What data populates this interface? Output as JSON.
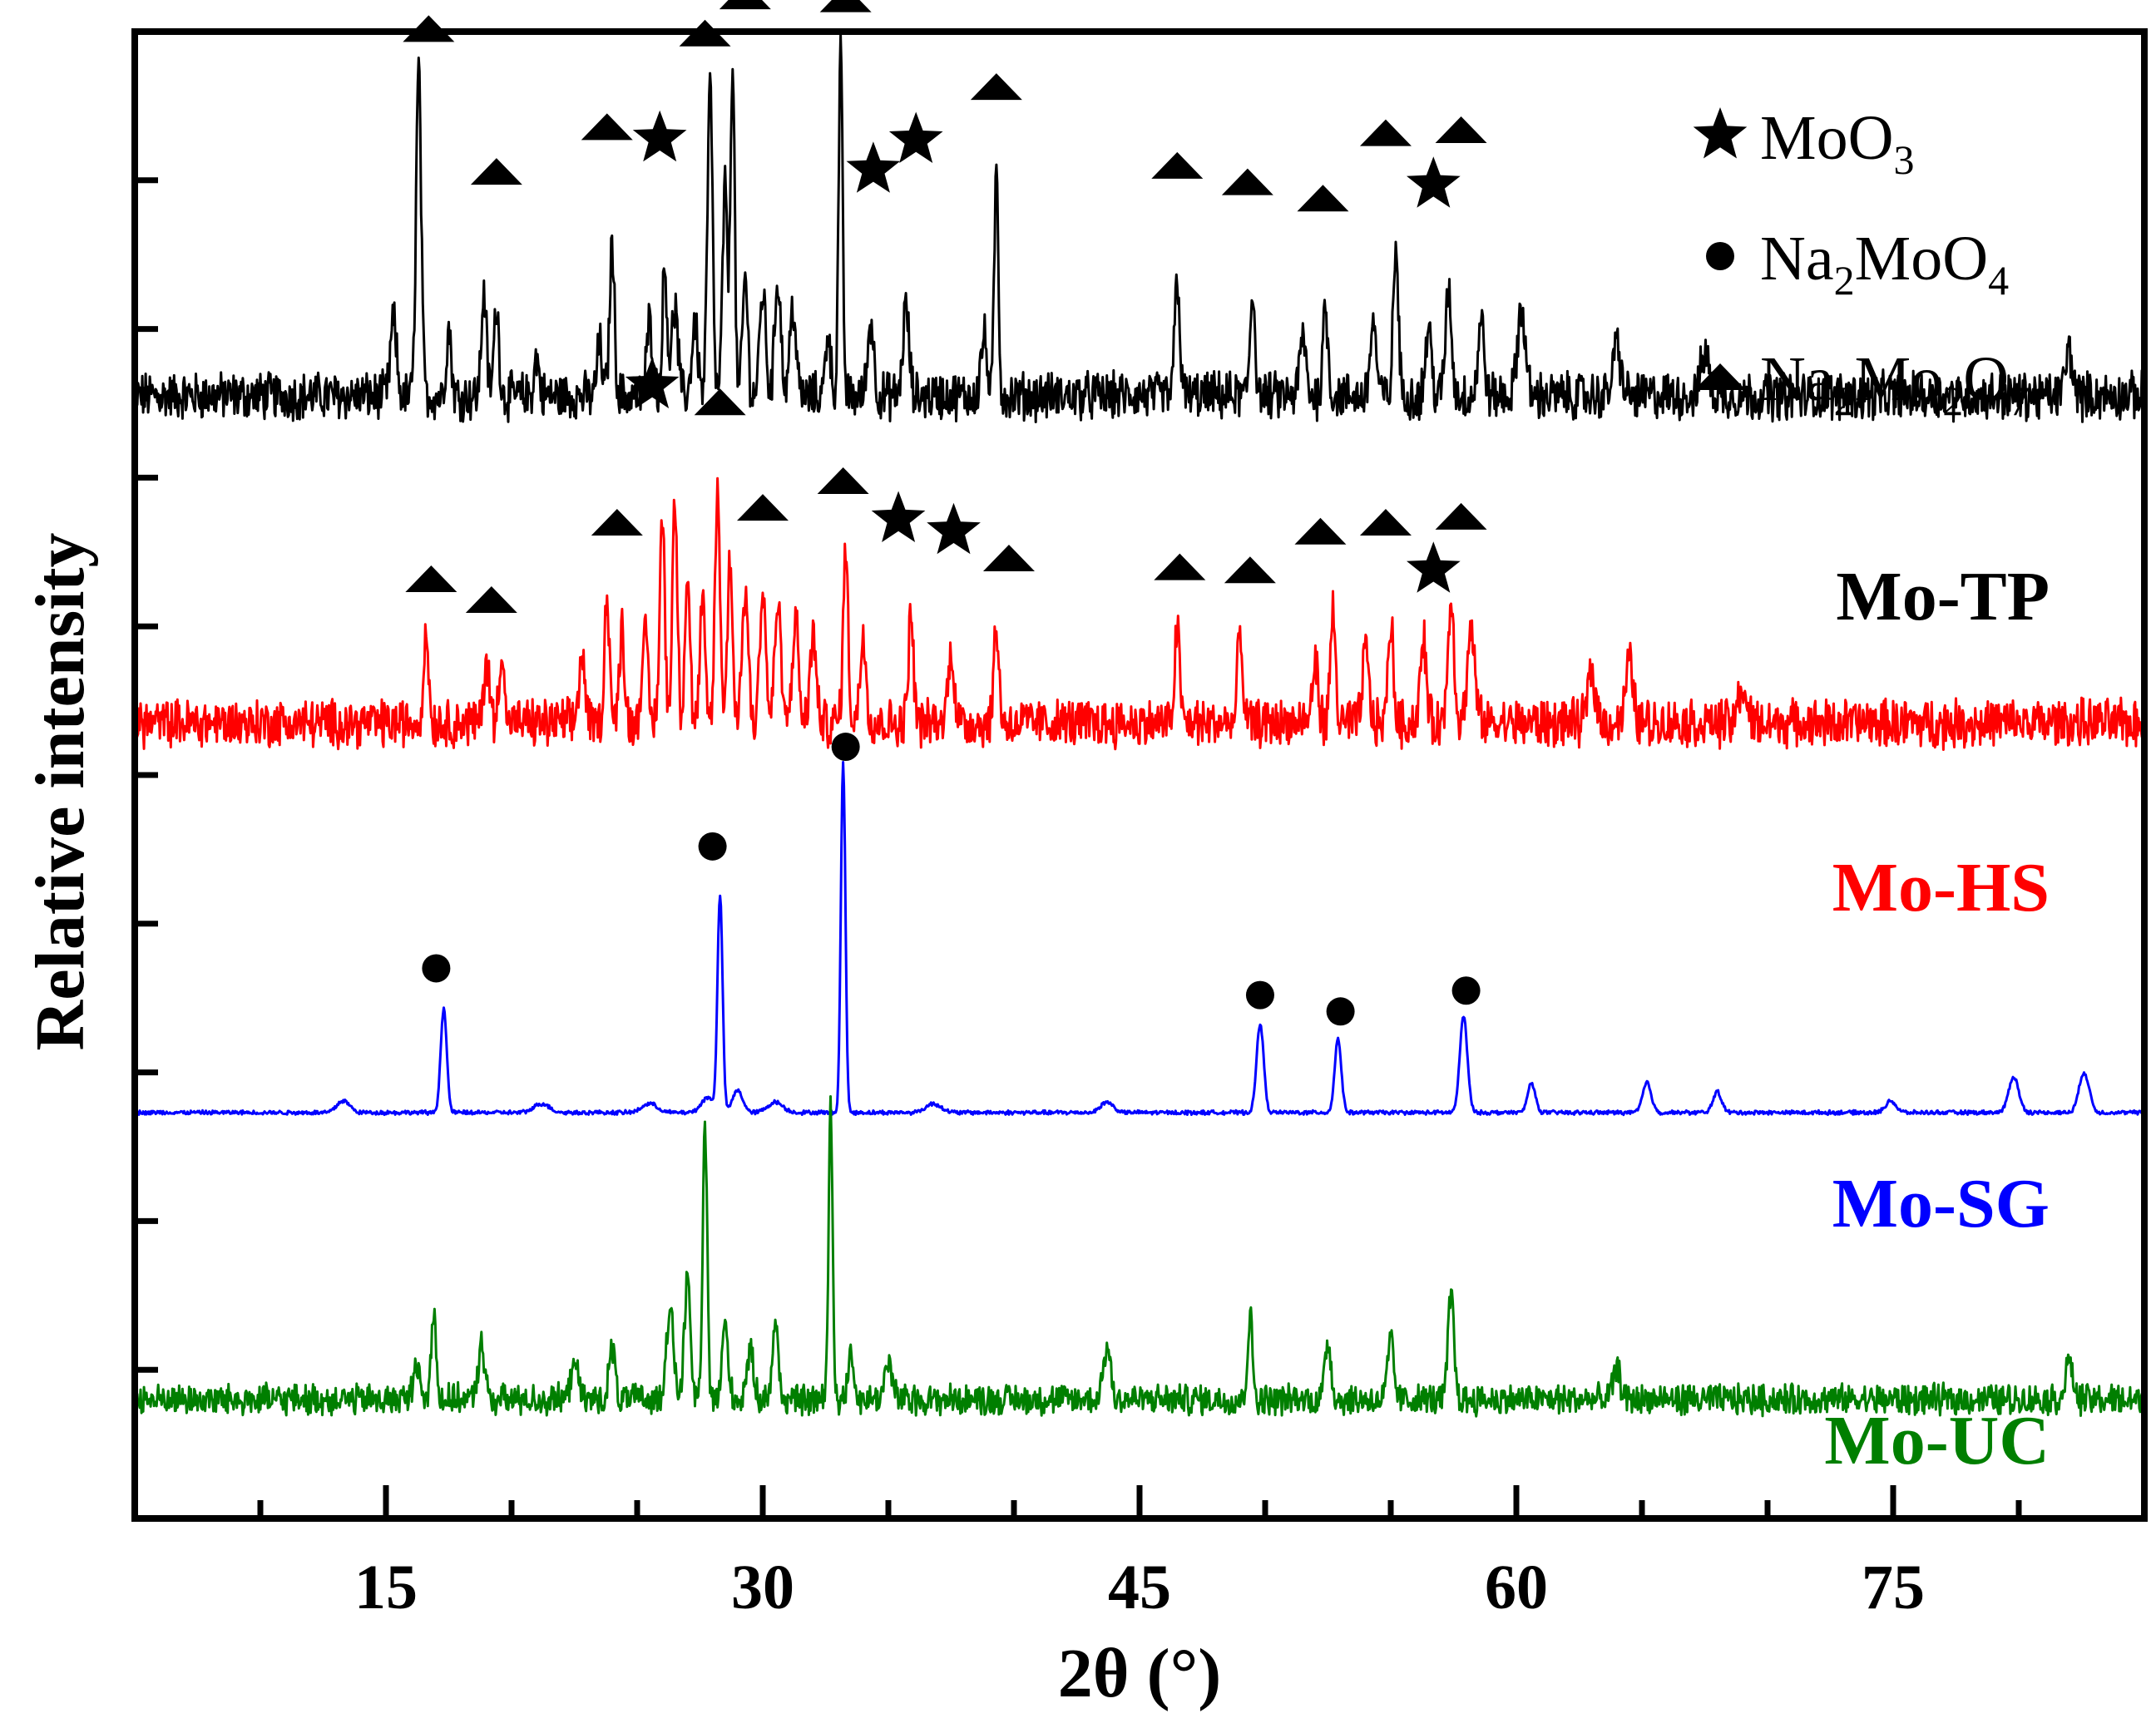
{
  "chart_data": {
    "type": "line",
    "title": "",
    "xlabel": "2θ (°)",
    "ylabel": "Relative intensity",
    "xlim": [
      5,
      85
    ],
    "ylim": [
      0,
      100
    ],
    "xticks": [
      15,
      30,
      45,
      60,
      75
    ],
    "y_ticks_unlabeled": true,
    "grid": false,
    "legend_position": "top-right",
    "colors": {
      "Mo-TP": "#000000",
      "Mo-HS": "#ff0000",
      "Mo-SG": "#0000ff",
      "Mo-UC": "#007f00",
      "axis": "#000000"
    },
    "legend": [
      {
        "marker": "star",
        "formula": [
          [
            "MoO",
            ""
          ],
          [
            "3",
            "sub"
          ]
        ]
      },
      {
        "marker": "circle",
        "formula": [
          [
            "Na",
            ""
          ],
          [
            "2",
            "sub"
          ],
          [
            "MoO",
            ""
          ],
          [
            "4",
            "sub"
          ]
        ]
      },
      {
        "marker": "triangle",
        "formula": [
          [
            "Na",
            ""
          ],
          [
            "2",
            "sub"
          ],
          [
            "Mo",
            ""
          ],
          [
            "2",
            "sub"
          ],
          [
            "O",
            ""
          ],
          [
            "7",
            "sub"
          ]
        ]
      }
    ],
    "series": [
      {
        "name": "Mo-TP",
        "label": "Mo-TP",
        "baseline": 75.5,
        "noise": 1.4,
        "peaks": [
          [
            15.3,
            5.0,
            0.12
          ],
          [
            16.3,
            22.0,
            0.1
          ],
          [
            17.5,
            4.5,
            0.1
          ],
          [
            18.9,
            7.0,
            0.1
          ],
          [
            19.4,
            6.0,
            0.1
          ],
          [
            21.0,
            2.5,
            0.1
          ],
          [
            23.5,
            3.5,
            0.1
          ],
          [
            24.0,
            10.0,
            0.1
          ],
          [
            25.5,
            5.0,
            0.12
          ],
          [
            26.1,
            8.5,
            0.1
          ],
          [
            26.5,
            6.0,
            0.12
          ],
          [
            27.3,
            5.0,
            0.12
          ],
          [
            27.9,
            21.0,
            0.1
          ],
          [
            28.5,
            14.0,
            0.1
          ],
          [
            28.8,
            23.0,
            0.08
          ],
          [
            29.3,
            8.0,
            0.1
          ],
          [
            30.0,
            7.0,
            0.12
          ],
          [
            30.6,
            8.0,
            0.12
          ],
          [
            31.2,
            6.0,
            0.12
          ],
          [
            32.6,
            4.5,
            0.1
          ],
          [
            33.1,
            23.0,
            0.08
          ],
          [
            34.3,
            5.0,
            0.12
          ],
          [
            35.7,
            6.0,
            0.12
          ],
          [
            38.8,
            4.0,
            0.12
          ],
          [
            39.3,
            15.0,
            0.08
          ],
          [
            46.5,
            8.0,
            0.1
          ],
          [
            49.5,
            7.0,
            0.1
          ],
          [
            51.5,
            4.0,
            0.12
          ],
          [
            52.4,
            6.0,
            0.1
          ],
          [
            54.3,
            5.0,
            0.12
          ],
          [
            55.2,
            10.0,
            0.1
          ],
          [
            56.5,
            4.5,
            0.12
          ],
          [
            57.3,
            7.0,
            0.12
          ],
          [
            58.6,
            5.0,
            0.12
          ],
          [
            60.2,
            6.0,
            0.15
          ],
          [
            64.0,
            3.5,
            0.15
          ],
          [
            67.5,
            3.0,
            0.15
          ],
          [
            82.0,
            3.0,
            0.15
          ]
        ],
        "markers": [
          {
            "type": "triangle",
            "x": 16.7,
            "y": 100.2
          },
          {
            "type": "triangle",
            "x": 19.4,
            "y": 90.6
          },
          {
            "type": "triangle",
            "x": 23.8,
            "y": 93.6
          },
          {
            "type": "star",
            "x": 25.9,
            "y": 92.8
          },
          {
            "type": "triangle",
            "x": 27.7,
            "y": 99.9
          },
          {
            "type": "triangle",
            "x": 29.3,
            "y": 102.4
          },
          {
            "type": "triangle",
            "x": 33.3,
            "y": 102.2
          },
          {
            "type": "star",
            "x": 34.4,
            "y": 90.7
          },
          {
            "type": "star",
            "x": 36.1,
            "y": 92.7
          },
          {
            "type": "triangle",
            "x": 39.3,
            "y": 96.3
          },
          {
            "type": "triangle",
            "x": 46.5,
            "y": 91.0
          },
          {
            "type": "triangle",
            "x": 49.3,
            "y": 89.9
          },
          {
            "type": "triangle",
            "x": 52.3,
            "y": 88.8
          },
          {
            "type": "triangle",
            "x": 54.8,
            "y": 93.2
          },
          {
            "type": "star",
            "x": 56.7,
            "y": 89.7
          },
          {
            "type": "triangle",
            "x": 57.8,
            "y": 93.4
          }
        ]
      },
      {
        "name": "Mo-HS",
        "label": "Mo-HS",
        "baseline": 53.5,
        "noise": 1.4,
        "peaks": [
          [
            16.6,
            6.0,
            0.1
          ],
          [
            19.0,
            4.0,
            0.12
          ],
          [
            19.6,
            5.0,
            0.1
          ],
          [
            22.8,
            4.5,
            0.12
          ],
          [
            23.8,
            8.5,
            0.1
          ],
          [
            24.4,
            6.5,
            0.1
          ],
          [
            25.3,
            6.0,
            0.12
          ],
          [
            26.0,
            14.0,
            0.1
          ],
          [
            26.5,
            15.0,
            0.1
          ],
          [
            27.0,
            10.0,
            0.1
          ],
          [
            27.6,
            8.0,
            0.1
          ],
          [
            28.2,
            15.5,
            0.1
          ],
          [
            28.7,
            11.0,
            0.1
          ],
          [
            29.3,
            9.0,
            0.12
          ],
          [
            30.0,
            9.0,
            0.12
          ],
          [
            30.6,
            8.0,
            0.12
          ],
          [
            31.3,
            7.0,
            0.12
          ],
          [
            32.0,
            6.0,
            0.12
          ],
          [
            33.3,
            11.5,
            0.1
          ],
          [
            34.0,
            6.0,
            0.12
          ],
          [
            35.9,
            7.5,
            0.1
          ],
          [
            37.5,
            5.0,
            0.12
          ],
          [
            39.3,
            6.5,
            0.1
          ],
          [
            46.5,
            6.5,
            0.1
          ],
          [
            49.0,
            6.0,
            0.1
          ],
          [
            52.0,
            4.0,
            0.12
          ],
          [
            52.7,
            7.5,
            0.1
          ],
          [
            54.0,
            5.0,
            0.12
          ],
          [
            55.0,
            7.0,
            0.1
          ],
          [
            56.3,
            5.5,
            0.12
          ],
          [
            57.4,
            8.5,
            0.12
          ],
          [
            58.2,
            6.0,
            0.15
          ],
          [
            63.0,
            3.5,
            0.15
          ],
          [
            64.5,
            4.0,
            0.15
          ],
          [
            69.0,
            2.5,
            0.15
          ]
        ],
        "markers": [
          {
            "type": "triangle",
            "x": 16.8,
            "y": 63.2
          },
          {
            "type": "triangle",
            "x": 19.2,
            "y": 61.8
          },
          {
            "type": "triangle",
            "x": 24.2,
            "y": 67.0
          },
          {
            "type": "star",
            "x": 25.6,
            "y": 76.2
          },
          {
            "type": "triangle",
            "x": 28.3,
            "y": 75.1
          },
          {
            "type": "triangle",
            "x": 30.0,
            "y": 68.0
          },
          {
            "type": "triangle",
            "x": 33.2,
            "y": 69.8
          },
          {
            "type": "star",
            "x": 35.4,
            "y": 67.2
          },
          {
            "type": "star",
            "x": 37.6,
            "y": 66.4
          },
          {
            "type": "triangle",
            "x": 39.8,
            "y": 64.6
          },
          {
            "type": "triangle",
            "x": 46.6,
            "y": 64.0
          },
          {
            "type": "triangle",
            "x": 49.4,
            "y": 63.8
          },
          {
            "type": "triangle",
            "x": 52.2,
            "y": 66.4
          },
          {
            "type": "triangle",
            "x": 54.8,
            "y": 67.0
          },
          {
            "type": "star",
            "x": 56.7,
            "y": 63.8
          },
          {
            "type": "triangle",
            "x": 57.8,
            "y": 67.4
          }
        ]
      },
      {
        "name": "Mo-SG",
        "label": "Mo-SG",
        "baseline": 27.3,
        "noise": 0.12,
        "peaks": [
          [
            13.3,
            0.8,
            0.25
          ],
          [
            17.3,
            7.0,
            0.12
          ],
          [
            21.2,
            0.6,
            0.3
          ],
          [
            25.5,
            0.6,
            0.3
          ],
          [
            27.8,
            1.0,
            0.25
          ],
          [
            28.3,
            14.5,
            0.1
          ],
          [
            29.0,
            1.5,
            0.2
          ],
          [
            30.5,
            0.7,
            0.3
          ],
          [
            33.2,
            23.5,
            0.09
          ],
          [
            36.8,
            0.6,
            0.3
          ],
          [
            43.7,
            0.7,
            0.25
          ],
          [
            49.8,
            6.0,
            0.14
          ],
          [
            52.9,
            5.0,
            0.13
          ],
          [
            57.9,
            6.5,
            0.15
          ],
          [
            60.6,
            2.0,
            0.15
          ],
          [
            65.2,
            2.0,
            0.17
          ],
          [
            68.0,
            1.4,
            0.17
          ],
          [
            74.9,
            0.8,
            0.2
          ],
          [
            79.8,
            2.4,
            0.2
          ],
          [
            82.6,
            2.7,
            0.2
          ]
        ],
        "markers": [
          {
            "type": "circle",
            "x": 17.0,
            "y": 37.0
          },
          {
            "type": "circle",
            "x": 28.0,
            "y": 45.2
          },
          {
            "type": "circle",
            "x": 33.3,
            "y": 51.9
          },
          {
            "type": "circle",
            "x": 49.8,
            "y": 35.2
          },
          {
            "type": "circle",
            "x": 53.0,
            "y": 34.1
          },
          {
            "type": "circle",
            "x": 58.0,
            "y": 35.5
          }
        ]
      },
      {
        "name": "Mo-UC",
        "label": "Mo-UC",
        "baseline": 8.0,
        "noise": 0.9,
        "peaks": [
          [
            16.2,
            2.5,
            0.12
          ],
          [
            16.9,
            6.0,
            0.1
          ],
          [
            18.8,
            4.0,
            0.12
          ],
          [
            22.5,
            3.0,
            0.12
          ],
          [
            24.0,
            3.5,
            0.12
          ],
          [
            26.3,
            6.0,
            0.15
          ],
          [
            27.0,
            8.0,
            0.12
          ],
          [
            27.7,
            18.0,
            0.09
          ],
          [
            28.5,
            5.0,
            0.12
          ],
          [
            29.5,
            3.0,
            0.15
          ],
          [
            30.5,
            5.0,
            0.12
          ],
          [
            32.7,
            20.0,
            0.08
          ],
          [
            33.5,
            3.0,
            0.12
          ],
          [
            35.0,
            2.5,
            0.15
          ],
          [
            43.7,
            3.5,
            0.15
          ],
          [
            49.4,
            5.5,
            0.1
          ],
          [
            52.5,
            4.0,
            0.12
          ],
          [
            55.0,
            4.0,
            0.12
          ],
          [
            57.4,
            7.0,
            0.12
          ],
          [
            64.0,
            2.0,
            0.15
          ],
          [
            82.0,
            2.5,
            0.15
          ]
        ],
        "markers": []
      }
    ]
  }
}
